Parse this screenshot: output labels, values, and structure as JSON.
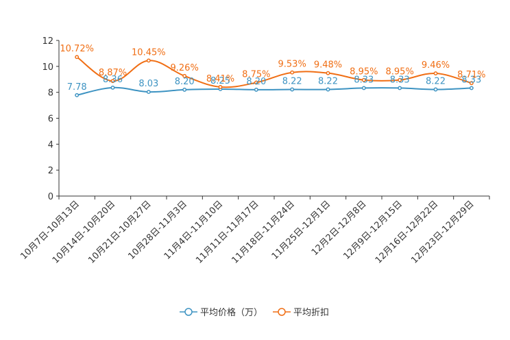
{
  "chart_data": {
    "type": "line",
    "title": "",
    "xlabel": "",
    "ylabel": "",
    "ylim": [
      0,
      12
    ],
    "yticks": [
      0,
      2,
      4,
      6,
      8,
      10,
      12
    ],
    "categories": [
      "10月7日-10月13日",
      "10月14日-10月20日",
      "10月21日-10月27日",
      "10月28日-11月3日",
      "11月4日-11月10日",
      "11月11日-11月17日",
      "11月18日-11月24日",
      "11月25日-12月1日",
      "12月2日-12月8日",
      "12月9日-12月15日",
      "12月16日-12月22日",
      "12月23日-12月29日"
    ],
    "series": [
      {
        "name": "平均价格（万）",
        "color": "#3d93c2",
        "values": [
          7.78,
          8.36,
          8.03,
          8.2,
          8.25,
          8.2,
          8.22,
          8.22,
          8.33,
          8.33,
          8.22,
          8.33
        ],
        "labels": [
          "7.78",
          "8.36",
          "8.03",
          "8.20",
          "8.25",
          "8.20",
          "8.22",
          "8.22",
          "8.33",
          "8.33",
          "8.22",
          "8.33"
        ]
      },
      {
        "name": "平均折扣",
        "color": "#f06e14",
        "values": [
          10.72,
          8.87,
          10.45,
          9.26,
          8.41,
          8.75,
          9.53,
          9.48,
          8.95,
          8.95,
          9.46,
          8.71
        ],
        "labels": [
          "10.72%",
          "8.87%",
          "10.45%",
          "9.26%",
          "8.41%",
          "8.75%",
          "9.53%",
          "9.48%",
          "8.95%",
          "8.95%",
          "9.46%",
          "8.71%"
        ]
      }
    ],
    "legend_position": "bottom-center",
    "grid": false
  }
}
